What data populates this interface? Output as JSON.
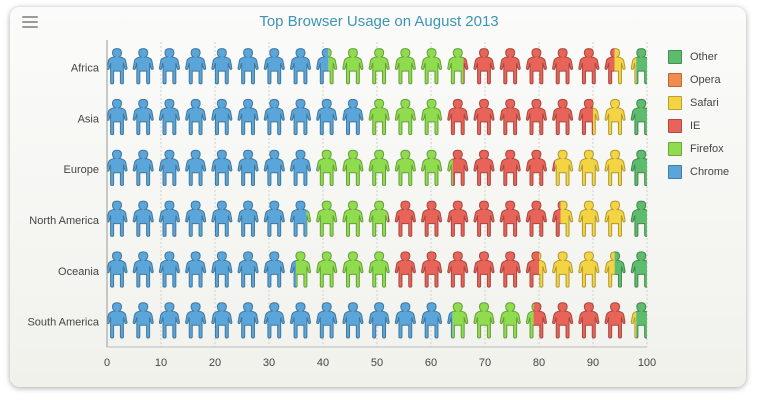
{
  "menu": {
    "icon": "hamburger-menu-icon"
  },
  "chart_data": {
    "type": "bar",
    "stacked": true,
    "orientation": "horizontal",
    "style": "pictogram-people",
    "title": "Top Browser Usage on August 2013",
    "xlabel": "",
    "ylabel": "",
    "categories": [
      "Africa",
      "Asia",
      "Europe",
      "North America",
      "Oceania",
      "South America"
    ],
    "series": [
      {
        "name": "Chrome",
        "color": "#5aa5d9",
        "values": [
          41,
          48,
          39,
          37,
          35,
          64
        ]
      },
      {
        "name": "Firefox",
        "color": "#8fdc4f",
        "values": [
          25,
          15,
          25,
          15,
          18,
          15
        ]
      },
      {
        "name": "IE",
        "color": "#e86358",
        "values": [
          28,
          27,
          19,
          32,
          27,
          17
        ]
      },
      {
        "name": "Safari",
        "color": "#f4d443",
        "values": [
          4,
          6,
          13,
          12,
          14,
          2
        ]
      },
      {
        "name": "Opera",
        "color": "#f08c4d",
        "values": [
          0,
          0,
          0,
          0,
          0,
          0
        ]
      },
      {
        "name": "Other",
        "color": "#5dbc6d",
        "values": [
          2,
          4,
          4,
          4,
          6,
          2
        ]
      }
    ],
    "xlim": [
      0,
      100
    ],
    "xticks": [
      0,
      10,
      20,
      30,
      40,
      50,
      60,
      70,
      80,
      90,
      100
    ],
    "grid": true,
    "legend_position": "right",
    "legend_order": [
      "Other",
      "Opera",
      "Safari",
      "IE",
      "Firefox",
      "Chrome"
    ]
  }
}
